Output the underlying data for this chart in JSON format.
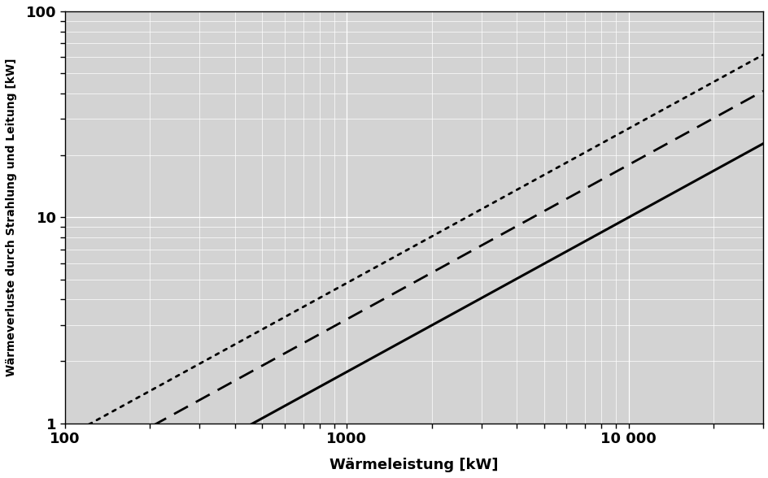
{
  "xlabel": "Wärmeleistung [kW]",
  "ylabel": "Wärmeverluste durch Strahlung und Leitung [kW]",
  "xlim": [
    100,
    30000
  ],
  "ylim": [
    1,
    100
  ],
  "background_color": "#d3d3d3",
  "grid_color": "#ffffff",
  "lines": [
    {
      "label": "solid",
      "style": "solid",
      "lw": 2.2,
      "color": "#000000",
      "coeff": 0.01,
      "exponent": 0.75
    },
    {
      "label": "dashed",
      "style": "dashed",
      "lw": 2.0,
      "color": "#000000",
      "coeff": 0.018,
      "exponent": 0.75
    },
    {
      "label": "dotted",
      "style": "dotted",
      "lw": 2.0,
      "color": "#000000",
      "coeff": 0.027,
      "exponent": 0.75
    }
  ],
  "xticks": [
    100,
    1000,
    10000
  ],
  "xtick_labels": [
    "100",
    "1000",
    "10 000"
  ],
  "yticks": [
    1,
    10,
    100
  ],
  "ytick_labels": [
    "1",
    "10",
    "100"
  ],
  "figsize": [
    9.45,
    5.88
  ],
  "dpi": 100
}
